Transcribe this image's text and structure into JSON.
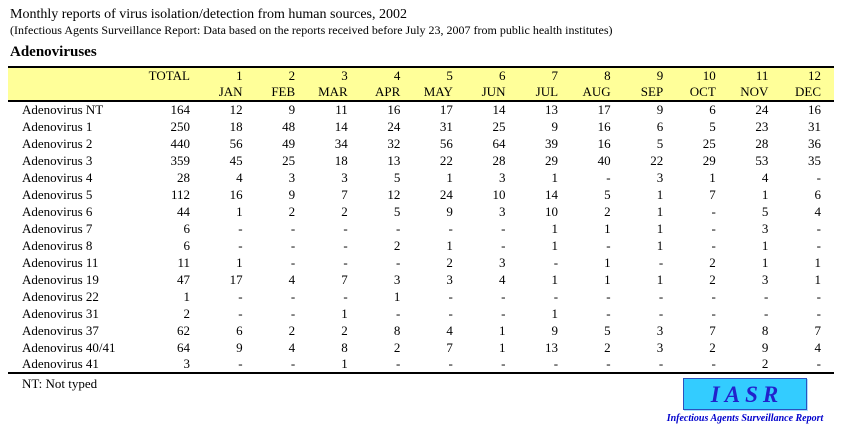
{
  "header": {
    "title": "Monthly reports of virus isolation/detection from human sources, 2002",
    "subtitle": "(Infectious Agents Surveillance Report: Data based on the reports received before July 23, 2007 from public health institutes)",
    "section_title": "Adenoviruses"
  },
  "table": {
    "label_header": "",
    "total_header": "TOTAL",
    "month_numbers": [
      "1",
      "2",
      "3",
      "4",
      "5",
      "6",
      "7",
      "8",
      "9",
      "10",
      "11",
      "12"
    ],
    "month_names": [
      "JAN",
      "FEB",
      "MAR",
      "APR",
      "MAY",
      "JUN",
      "JUL",
      "AUG",
      "SEP",
      "OCT",
      "NOV",
      "DEC"
    ],
    "rows": [
      {
        "name": "Adenovirus NT",
        "total": "164",
        "values": [
          "12",
          "9",
          "11",
          "16",
          "17",
          "14",
          "13",
          "17",
          "9",
          "6",
          "24",
          "16"
        ]
      },
      {
        "name": "Adenovirus 1",
        "total": "250",
        "values": [
          "18",
          "48",
          "14",
          "24",
          "31",
          "25",
          "9",
          "16",
          "6",
          "5",
          "23",
          "31"
        ]
      },
      {
        "name": "Adenovirus 2",
        "total": "440",
        "values": [
          "56",
          "49",
          "34",
          "32",
          "56",
          "64",
          "39",
          "16",
          "5",
          "25",
          "28",
          "36"
        ]
      },
      {
        "name": "Adenovirus 3",
        "total": "359",
        "values": [
          "45",
          "25",
          "18",
          "13",
          "22",
          "28",
          "29",
          "40",
          "22",
          "29",
          "53",
          "35"
        ]
      },
      {
        "name": "Adenovirus 4",
        "total": "28",
        "values": [
          "4",
          "3",
          "3",
          "5",
          "1",
          "3",
          "1",
          "-",
          "3",
          "1",
          "4",
          "-"
        ]
      },
      {
        "name": "Adenovirus 5",
        "total": "112",
        "values": [
          "16",
          "9",
          "7",
          "12",
          "24",
          "10",
          "14",
          "5",
          "1",
          "7",
          "1",
          "6"
        ]
      },
      {
        "name": "Adenovirus 6",
        "total": "44",
        "values": [
          "1",
          "2",
          "2",
          "5",
          "9",
          "3",
          "10",
          "2",
          "1",
          "-",
          "5",
          "4"
        ]
      },
      {
        "name": "Adenovirus 7",
        "total": "6",
        "values": [
          "-",
          "-",
          "-",
          "-",
          "-",
          "-",
          "1",
          "1",
          "1",
          "-",
          "3",
          "-"
        ]
      },
      {
        "name": "Adenovirus 8",
        "total": "6",
        "values": [
          "-",
          "-",
          "-",
          "2",
          "1",
          "-",
          "1",
          "-",
          "1",
          "-",
          "1",
          "-"
        ]
      },
      {
        "name": "Adenovirus 11",
        "total": "11",
        "values": [
          "1",
          "-",
          "-",
          "-",
          "2",
          "3",
          "-",
          "1",
          "-",
          "2",
          "1",
          "1"
        ]
      },
      {
        "name": "Adenovirus 19",
        "total": "47",
        "values": [
          "17",
          "4",
          "7",
          "3",
          "3",
          "4",
          "1",
          "1",
          "1",
          "2",
          "3",
          "1"
        ]
      },
      {
        "name": "Adenovirus 22",
        "total": "1",
        "values": [
          "-",
          "-",
          "-",
          "1",
          "-",
          "-",
          "-",
          "-",
          "-",
          "-",
          "-",
          "-"
        ]
      },
      {
        "name": "Adenovirus 31",
        "total": "2",
        "values": [
          "-",
          "-",
          "1",
          "-",
          "-",
          "-",
          "1",
          "-",
          "-",
          "-",
          "-",
          "-"
        ]
      },
      {
        "name": "Adenovirus 37",
        "total": "62",
        "values": [
          "6",
          "2",
          "2",
          "8",
          "4",
          "1",
          "9",
          "5",
          "3",
          "7",
          "8",
          "7"
        ]
      },
      {
        "name": "Adenovirus 40/41",
        "total": "64",
        "values": [
          "9",
          "4",
          "8",
          "2",
          "7",
          "1",
          "13",
          "2",
          "3",
          "2",
          "9",
          "4"
        ]
      },
      {
        "name": "Adenovirus 41",
        "total": "3",
        "values": [
          "-",
          "-",
          "1",
          "-",
          "-",
          "-",
          "-",
          "-",
          "-",
          "-",
          "2",
          "-"
        ]
      }
    ]
  },
  "footnote": "NT: Not typed",
  "logo": {
    "text": "IASR",
    "caption": "Infectious Agents Surveillance Report"
  },
  "colors": {
    "header_bg": "#FFFF99",
    "logo_box_bg": "#33CCFF",
    "logo_text_color": "#2222CC",
    "logo_caption_color": "#0000CC",
    "rule_color": "#000000"
  }
}
